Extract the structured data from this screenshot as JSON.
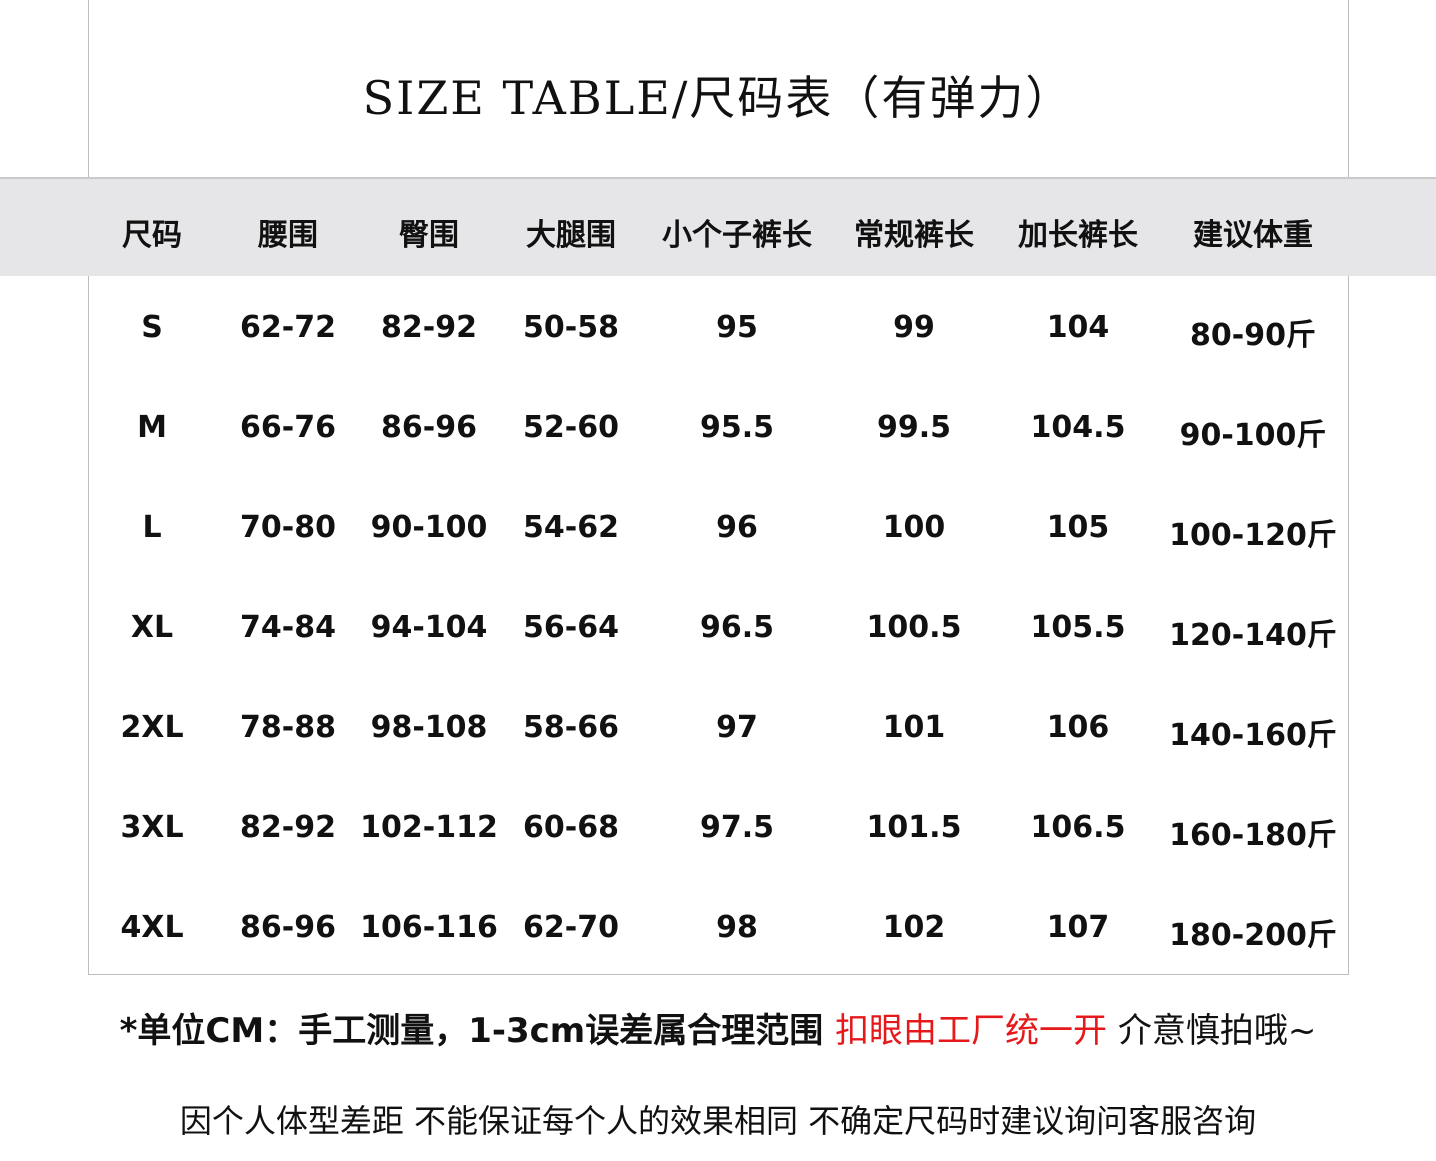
{
  "title": "SIZE TABLE/尺码表（有弹力）",
  "table": {
    "headers": [
      "尺码",
      "腰围",
      "臀围",
      "大腿围",
      "小个子裤长",
      "常规裤长",
      "加长裤长",
      "建议体重"
    ],
    "rows": [
      [
        "S",
        "62-72",
        "82-92",
        "50-58",
        "95",
        "99",
        "104",
        "80-90斤"
      ],
      [
        "M",
        "66-76",
        "86-96",
        "52-60",
        "95.5",
        "99.5",
        "104.5",
        "90-100斤"
      ],
      [
        "L",
        "70-80",
        "90-100",
        "54-62",
        "96",
        "100",
        "105",
        "100-120斤"
      ],
      [
        "XL",
        "74-84",
        "94-104",
        "56-64",
        "96.5",
        "100.5",
        "105.5",
        "120-140斤"
      ],
      [
        "2XL",
        "78-88",
        "98-108",
        "58-66",
        "97",
        "101",
        "106",
        "140-160斤"
      ],
      [
        "3XL",
        "82-92",
        "102-112",
        "60-68",
        "97.5",
        "101.5",
        "106.5",
        "160-180斤"
      ],
      [
        "4XL",
        "86-96",
        "106-116",
        "62-70",
        "98",
        "102",
        "107",
        "180-200斤"
      ]
    ]
  },
  "notes": {
    "line1_part1": "*单位CM：手工测量，1-3cm误差属合理范围 ",
    "line1_red": "扣眼由工厂统一开",
    "line1_part2": " 介意慎拍哦~",
    "line2": "因个人体型差距 不能保证每个人的效果相同 不确定尺码时建议询问客服咨询"
  },
  "colors": {
    "header_band": "#e6e5e8",
    "highlight_text": "#e5191b"
  }
}
